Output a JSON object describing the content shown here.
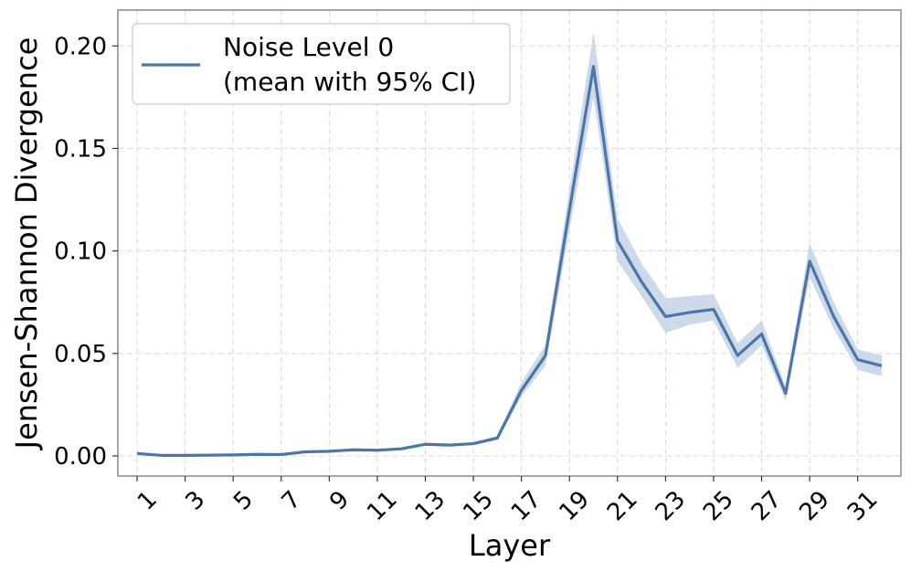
{
  "chart_data": {
    "type": "line",
    "title": "",
    "xlabel": "Layer",
    "ylabel": "Jensen-Shannon Divergence",
    "xlim": [
      0.2,
      32.8
    ],
    "ylim": [
      -0.0098,
      0.2175
    ],
    "grid": true,
    "legend_position": "top-left",
    "x_ticks": [
      1,
      3,
      5,
      7,
      9,
      11,
      13,
      15,
      17,
      19,
      21,
      23,
      25,
      27,
      29,
      31
    ],
    "x_tick_labels": [
      "1",
      "3",
      "5",
      "7",
      "9",
      "11",
      "13",
      "15",
      "17",
      "19",
      "21",
      "23",
      "25",
      "27",
      "29",
      "31"
    ],
    "y_ticks": [
      0.0,
      0.05,
      0.1,
      0.15,
      0.2
    ],
    "y_tick_labels": [
      "0.00",
      "0.05",
      "0.10",
      "0.15",
      "0.20"
    ],
    "colors": {
      "line": "#4a76a8",
      "band": "#c5d2e6",
      "grid": "#d9d9d9",
      "axes": "#888888"
    },
    "series": [
      {
        "name": "Noise Level 0\n(mean with 95% CI)",
        "legend_lines": [
          "Noise Level 0",
          "(mean with 95% CI)"
        ],
        "x": [
          1,
          2,
          3,
          4,
          5,
          6,
          7,
          8,
          9,
          10,
          11,
          12,
          13,
          14,
          15,
          16,
          17,
          18,
          19,
          20,
          21,
          22,
          23,
          24,
          25,
          26,
          27,
          28,
          29,
          30,
          31,
          32
        ],
        "values": [
          0.0012,
          0.0003,
          0.0003,
          0.0004,
          0.0005,
          0.0008,
          0.0007,
          0.002,
          0.0023,
          0.003,
          0.0028,
          0.0035,
          0.0057,
          0.0053,
          0.006,
          0.0088,
          0.032,
          0.049,
          0.12,
          0.19,
          0.105,
          0.085,
          0.068,
          0.07,
          0.0715,
          0.049,
          0.0595,
          0.0305,
          0.095,
          0.068,
          0.047,
          0.044
        ],
        "ci_lower": [
          0.0005,
          0.0001,
          0.0001,
          0.0002,
          0.0002,
          0.0005,
          0.0004,
          0.0015,
          0.0018,
          0.0025,
          0.0023,
          0.003,
          0.005,
          0.0047,
          0.0053,
          0.0078,
          0.029,
          0.044,
          0.11,
          0.175,
          0.095,
          0.078,
          0.06,
          0.064,
          0.066,
          0.043,
          0.054,
          0.027,
          0.087,
          0.062,
          0.042,
          0.039
        ],
        "ci_upper": [
          0.0019,
          0.0006,
          0.0006,
          0.0007,
          0.0008,
          0.0011,
          0.001,
          0.0025,
          0.0028,
          0.0035,
          0.0033,
          0.004,
          0.0064,
          0.006,
          0.0067,
          0.0098,
          0.036,
          0.054,
          0.13,
          0.207,
          0.116,
          0.094,
          0.077,
          0.078,
          0.079,
          0.055,
          0.066,
          0.034,
          0.104,
          0.075,
          0.052,
          0.049
        ]
      }
    ]
  }
}
